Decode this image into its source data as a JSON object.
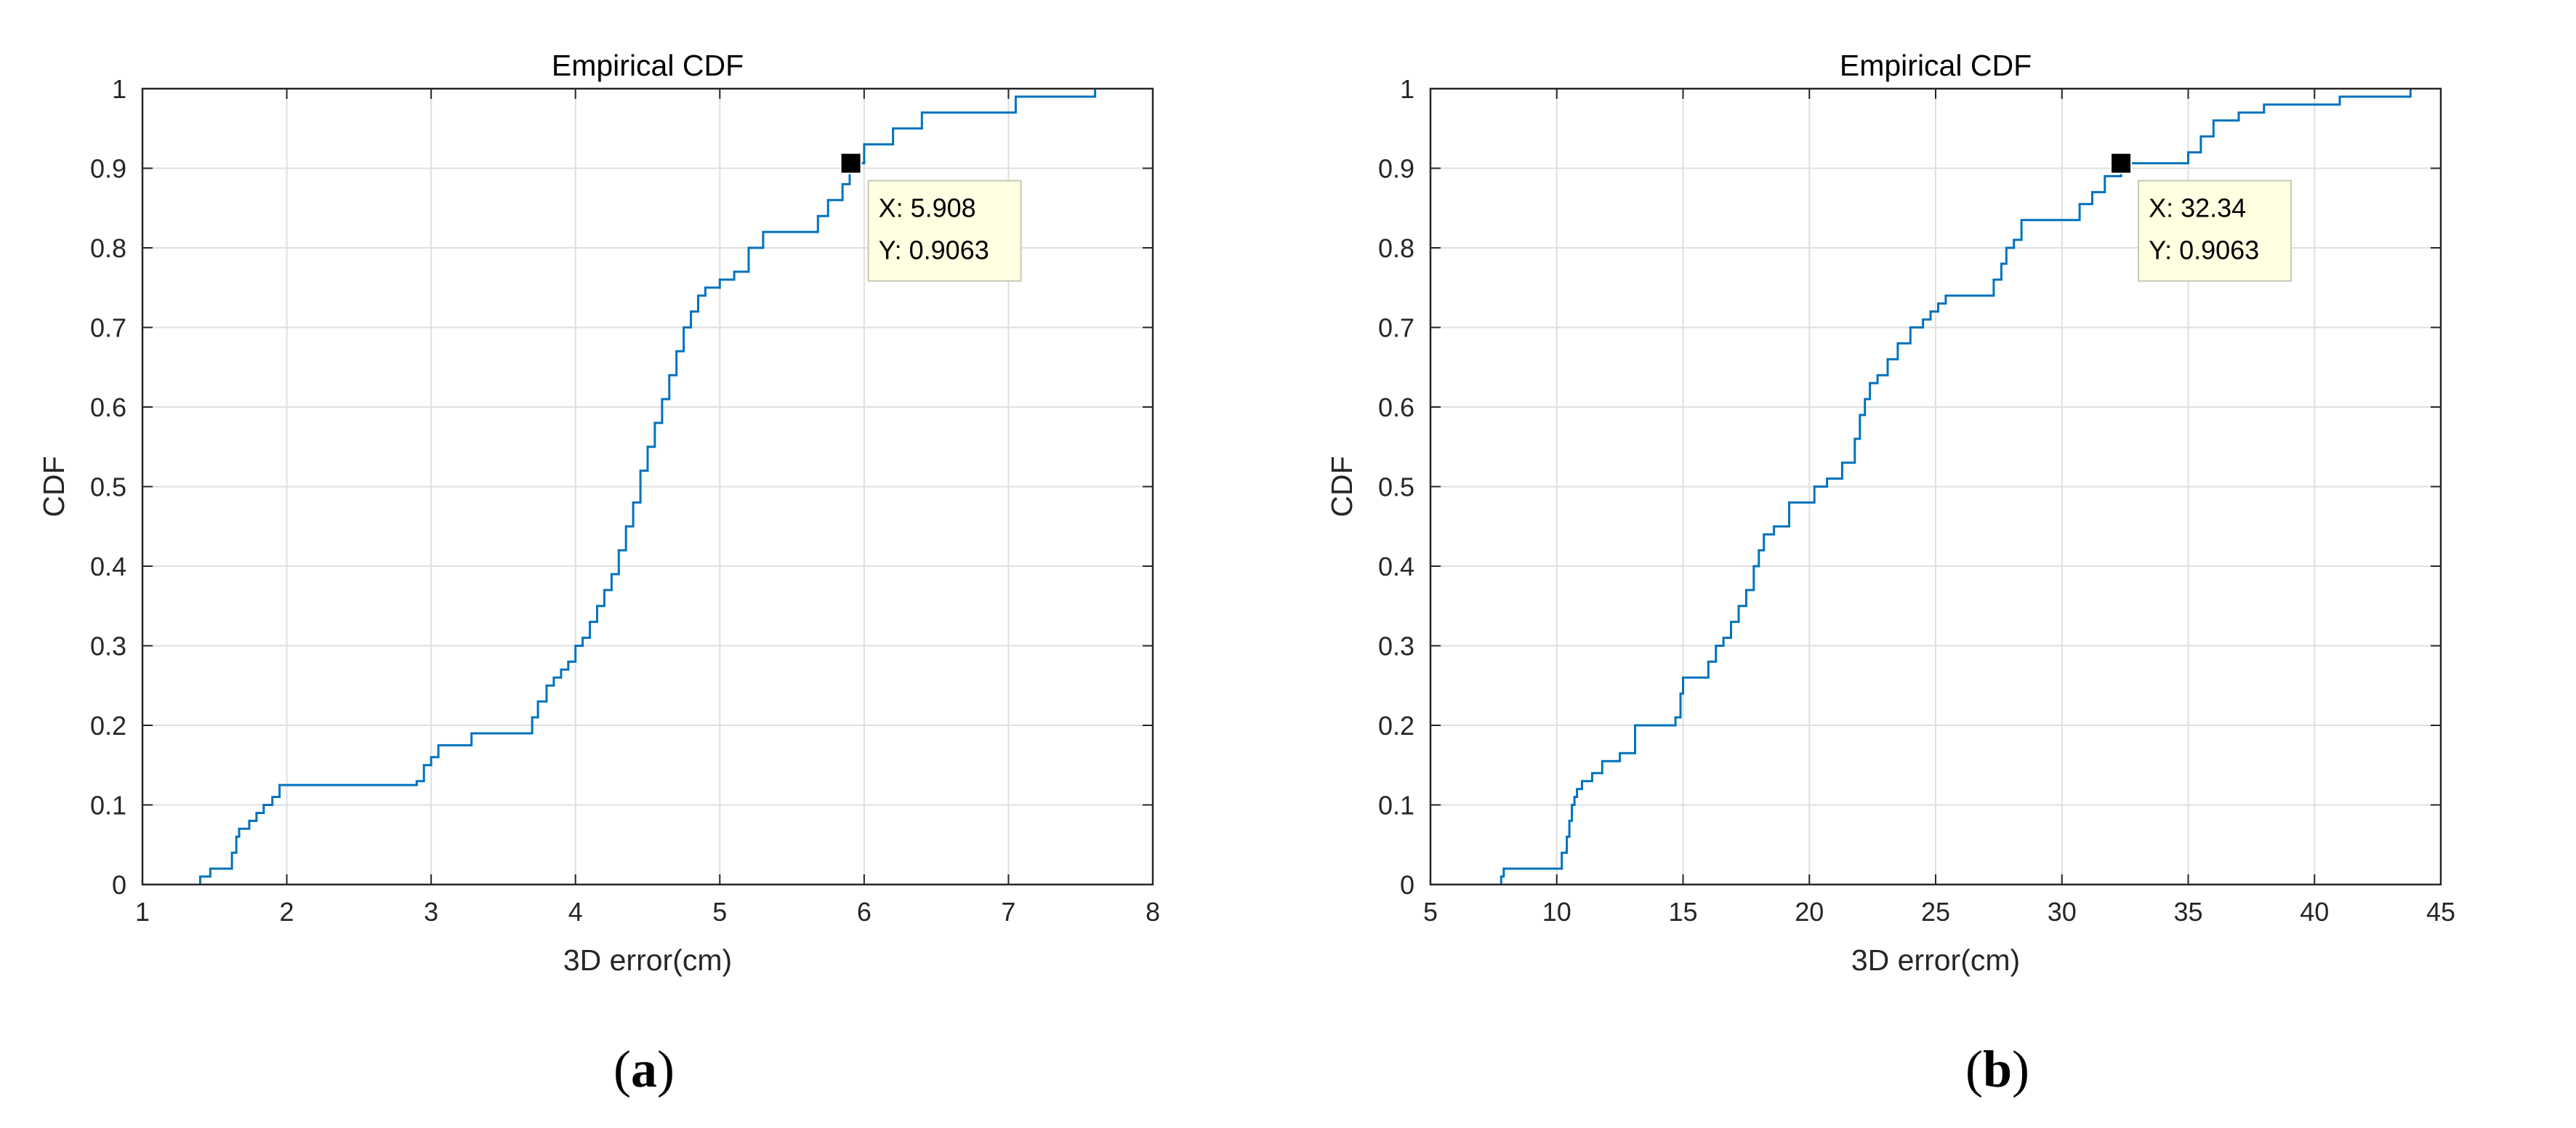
{
  "chart_data": [
    {
      "type": "line",
      "title": "Empirical CDF",
      "xlabel": "3D error(cm)",
      "ylabel": "CDF",
      "xlim": [
        1,
        8
      ],
      "ylim": [
        0,
        1
      ],
      "xticks": [
        1,
        2,
        3,
        4,
        5,
        6,
        7,
        8
      ],
      "yticks": [
        0,
        0.1,
        0.2,
        0.3,
        0.4,
        0.5,
        0.6,
        0.7,
        0.8,
        0.9,
        1
      ],
      "grid": true,
      "step": true,
      "line_color": "#0072bd",
      "series": [
        {
          "x": [
            1.4,
            1.47,
            1.62,
            1.65,
            1.67,
            1.74,
            1.79,
            1.84,
            1.9,
            1.95,
            2.9,
            2.95,
            3.0,
            3.05,
            3.28,
            3.7,
            3.74,
            3.8,
            3.85,
            3.9,
            3.95,
            4.0,
            4.05,
            4.1,
            4.15,
            4.2,
            4.25,
            4.3,
            4.35,
            4.4,
            4.45,
            4.5,
            4.55,
            4.6,
            4.65,
            4.7,
            4.75,
            4.8,
            4.85,
            4.9,
            5.0,
            5.1,
            5.2,
            5.3,
            5.68,
            5.75,
            5.85,
            5.9,
            6.0,
            6.2,
            6.4,
            7.05,
            7.6
          ],
          "y": [
            0.01,
            0.02,
            0.04,
            0.06,
            0.07,
            0.08,
            0.09,
            0.1,
            0.11,
            0.125,
            0.13,
            0.15,
            0.16,
            0.175,
            0.19,
            0.21,
            0.23,
            0.25,
            0.26,
            0.27,
            0.28,
            0.3,
            0.31,
            0.33,
            0.35,
            0.37,
            0.39,
            0.42,
            0.45,
            0.48,
            0.52,
            0.55,
            0.58,
            0.61,
            0.64,
            0.67,
            0.7,
            0.72,
            0.74,
            0.75,
            0.76,
            0.77,
            0.8,
            0.82,
            0.84,
            0.86,
            0.88,
            0.9063,
            0.93,
            0.95,
            0.97,
            0.99,
            1.0
          ]
        }
      ],
      "datatip": {
        "x_text": "X: 5.908",
        "y_text": "Y: 0.9063",
        "x": 5.908,
        "y": 0.9063
      },
      "caption": "(a)"
    },
    {
      "type": "line",
      "title": "Empirical CDF",
      "xlabel": "3D error(cm)",
      "ylabel": "CDF",
      "xlim": [
        5,
        45
      ],
      "ylim": [
        0,
        1
      ],
      "xticks": [
        5,
        10,
        15,
        20,
        25,
        30,
        35,
        40,
        45
      ],
      "yticks": [
        0,
        0.1,
        0.2,
        0.3,
        0.4,
        0.5,
        0.6,
        0.7,
        0.8,
        0.9,
        1
      ],
      "grid": true,
      "step": true,
      "line_color": "#0072bd",
      "series": [
        {
          "x": [
            7.8,
            7.9,
            10.2,
            10.4,
            10.5,
            10.6,
            10.7,
            10.8,
            11.0,
            11.4,
            11.8,
            12.5,
            13.1,
            14.7,
            14.9,
            15.0,
            16.0,
            16.3,
            16.6,
            16.9,
            17.2,
            17.5,
            17.8,
            18.0,
            18.2,
            18.6,
            19.2,
            20.2,
            20.7,
            21.3,
            21.8,
            22.0,
            22.2,
            22.4,
            22.7,
            23.1,
            23.5,
            24.0,
            24.5,
            24.8,
            25.1,
            25.4,
            25.7,
            27.3,
            27.6,
            27.8,
            28.1,
            28.4,
            30.7,
            31.2,
            31.7,
            32.34,
            35.0,
            35.5,
            36.0,
            37.0,
            38.0,
            41.0,
            43.8
          ],
          "y": [
            0.01,
            0.02,
            0.04,
            0.06,
            0.08,
            0.1,
            0.11,
            0.12,
            0.13,
            0.14,
            0.155,
            0.165,
            0.2,
            0.21,
            0.24,
            0.26,
            0.28,
            0.3,
            0.31,
            0.33,
            0.35,
            0.37,
            0.4,
            0.42,
            0.44,
            0.45,
            0.48,
            0.5,
            0.51,
            0.53,
            0.56,
            0.59,
            0.61,
            0.63,
            0.64,
            0.66,
            0.68,
            0.7,
            0.71,
            0.72,
            0.73,
            0.74,
            0.74,
            0.76,
            0.78,
            0.8,
            0.81,
            0.835,
            0.855,
            0.87,
            0.89,
            0.9063,
            0.92,
            0.94,
            0.96,
            0.97,
            0.98,
            0.99,
            1.0
          ]
        }
      ],
      "datatip": {
        "x_text": "X: 32.34",
        "y_text": "Y: 0.9063",
        "x": 32.34,
        "y": 0.9063
      },
      "caption": "(b)"
    }
  ]
}
